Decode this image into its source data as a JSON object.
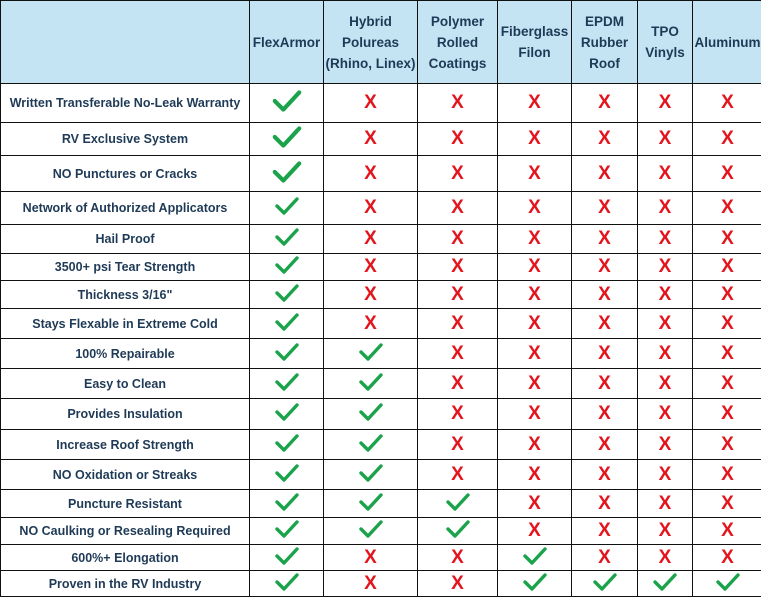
{
  "colors": {
    "header_bg": "#c4e3f3",
    "header_text": "#1f3a56",
    "check": "#1ba34b",
    "cross": "#e3141c"
  },
  "columns": [
    "",
    "FlexArmor",
    "Hybrid Polureas (Rhino, Linex)",
    "Polymer Rolled Coatings",
    "Fiberglass Filon",
    "EPDM Rubber Roof",
    "TPO Vinyls",
    "Aluminum"
  ],
  "rows": [
    {
      "feature": "Written Transferable No-Leak Warranty",
      "values": [
        "check",
        "x",
        "x",
        "x",
        "x",
        "x",
        "x"
      ]
    },
    {
      "feature": "RV Exclusive System",
      "values": [
        "check",
        "x",
        "x",
        "x",
        "x",
        "x",
        "x"
      ]
    },
    {
      "feature": "NO Punctures or Cracks",
      "values": [
        "check",
        "x",
        "x",
        "x",
        "x",
        "x",
        "x"
      ]
    },
    {
      "feature": "Network of Authorized Applicators",
      "values": [
        "check",
        "x",
        "x",
        "x",
        "x",
        "x",
        "x"
      ]
    },
    {
      "feature": "Hail Proof",
      "values": [
        "check",
        "x",
        "x",
        "x",
        "x",
        "x",
        "x"
      ]
    },
    {
      "feature": "3500+ psi Tear Strength",
      "values": [
        "check",
        "x",
        "x",
        "x",
        "x",
        "x",
        "x"
      ]
    },
    {
      "feature": "Thickness 3/16\"",
      "values": [
        "check",
        "x",
        "x",
        "x",
        "x",
        "x",
        "x"
      ]
    },
    {
      "feature": "Stays Flexable in Extreme Cold",
      "values": [
        "check",
        "x",
        "x",
        "x",
        "x",
        "x",
        "x"
      ]
    },
    {
      "feature": "100% Repairable",
      "values": [
        "check",
        "check",
        "x",
        "x",
        "x",
        "x",
        "x"
      ]
    },
    {
      "feature": "Easy to Clean",
      "values": [
        "check",
        "check",
        "x",
        "x",
        "x",
        "x",
        "x"
      ]
    },
    {
      "feature": "Provides Insulation",
      "values": [
        "check",
        "check",
        "x",
        "x",
        "x",
        "x",
        "x"
      ]
    },
    {
      "feature": "Increase Roof Strength",
      "values": [
        "check",
        "check",
        "x",
        "x",
        "x",
        "x",
        "x"
      ]
    },
    {
      "feature": "NO Oxidation or Streaks",
      "values": [
        "check",
        "check",
        "x",
        "x",
        "x",
        "x",
        "x"
      ]
    },
    {
      "feature": "Puncture Resistant",
      "values": [
        "check",
        "check",
        "check",
        "x",
        "x",
        "x",
        "x"
      ]
    },
    {
      "feature": "NO Caulking or Resealing Required",
      "values": [
        "check",
        "check",
        "check",
        "x",
        "x",
        "x",
        "x"
      ]
    },
    {
      "feature": "600%+ Elongation",
      "values": [
        "check",
        "x",
        "x",
        "check",
        "x",
        "x",
        "x"
      ]
    },
    {
      "feature": "Proven in the RV Industry",
      "values": [
        "check",
        "x",
        "x",
        "check",
        "check",
        "check",
        "check"
      ]
    }
  ],
  "cross_glyph": "X"
}
